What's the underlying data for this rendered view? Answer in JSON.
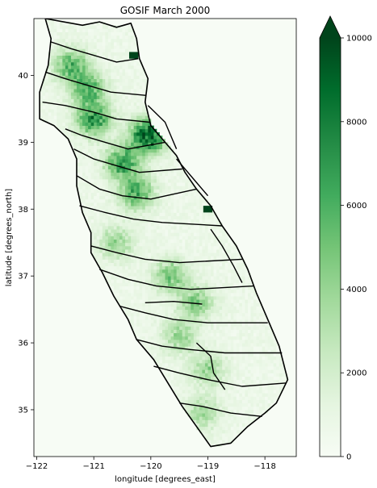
{
  "chart_data": {
    "type": "heatmap",
    "title": "GOSIF March 2000",
    "xlabel": "longitude [degrees_east]",
    "ylabel": "latitude [degrees_north]",
    "xlim": [
      -122.05,
      -117.45
    ],
    "ylim": [
      34.3,
      40.85
    ],
    "xticks": [
      {
        "value": -122,
        "label": "−122"
      },
      {
        "value": -121,
        "label": "−121"
      },
      {
        "value": -120,
        "label": "−120"
      },
      {
        "value": -119,
        "label": "−119"
      },
      {
        "value": -118,
        "label": "−118"
      }
    ],
    "yticks": [
      {
        "value": 35,
        "label": "35"
      },
      {
        "value": 36,
        "label": "36"
      },
      {
        "value": 37,
        "label": "37"
      },
      {
        "value": 38,
        "label": "38"
      },
      {
        "value": 39,
        "label": "39"
      },
      {
        "value": 40,
        "label": "40"
      }
    ],
    "colorbar": {
      "colormap": "Greens",
      "min": 0,
      "max": 10000,
      "extend": "max",
      "ticks": [
        {
          "value": 0,
          "label": "0"
        },
        {
          "value": 2000,
          "label": "2000"
        },
        {
          "value": 4000,
          "label": "4000"
        },
        {
          "value": 6000,
          "label": "6000"
        },
        {
          "value": 8000,
          "label": "8000"
        },
        {
          "value": 10000,
          "label": "10000"
        }
      ]
    },
    "colors": {
      "low": "#f7fcf5",
      "high": "#00441b",
      "boundary": "#000000"
    },
    "hotspots": [
      {
        "lon": -121.0,
        "lat": 39.35,
        "value": 7000
      },
      {
        "lon": -121.4,
        "lat": 40.15,
        "value": 5500
      },
      {
        "lon": -120.5,
        "lat": 38.7,
        "value": 6500
      },
      {
        "lon": -120.25,
        "lat": 38.25,
        "value": 6000
      },
      {
        "lon": -121.1,
        "lat": 39.8,
        "value": 5500
      },
      {
        "lon": -120.05,
        "lat": 39.1,
        "value": 9800
      },
      {
        "lon": -119.65,
        "lat": 37.0,
        "value": 4500
      },
      {
        "lon": -119.2,
        "lat": 36.6,
        "value": 4200
      },
      {
        "lon": -119.0,
        "lat": 35.6,
        "value": 3500
      },
      {
        "lon": -120.6,
        "lat": 37.5,
        "value": 3500
      },
      {
        "lon": -119.5,
        "lat": 36.1,
        "value": 3500
      },
      {
        "lon": -119.1,
        "lat": 34.95,
        "value": 3200
      }
    ],
    "saturated_cells": [
      {
        "lon": -120.3,
        "lat": 40.3
      },
      {
        "lon": -119.0,
        "lat": 38.0
      }
    ]
  }
}
